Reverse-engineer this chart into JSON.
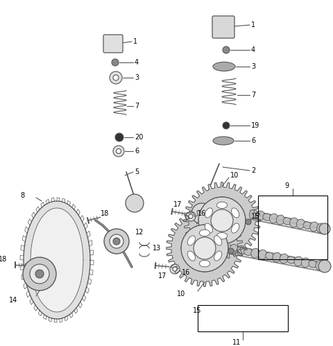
{
  "bg": "#ffffff",
  "lc": "#555555",
  "lc_dark": "#333333",
  "figsize": [
    4.8,
    4.99
  ],
  "dpi": 100,
  "fs": 7.0
}
